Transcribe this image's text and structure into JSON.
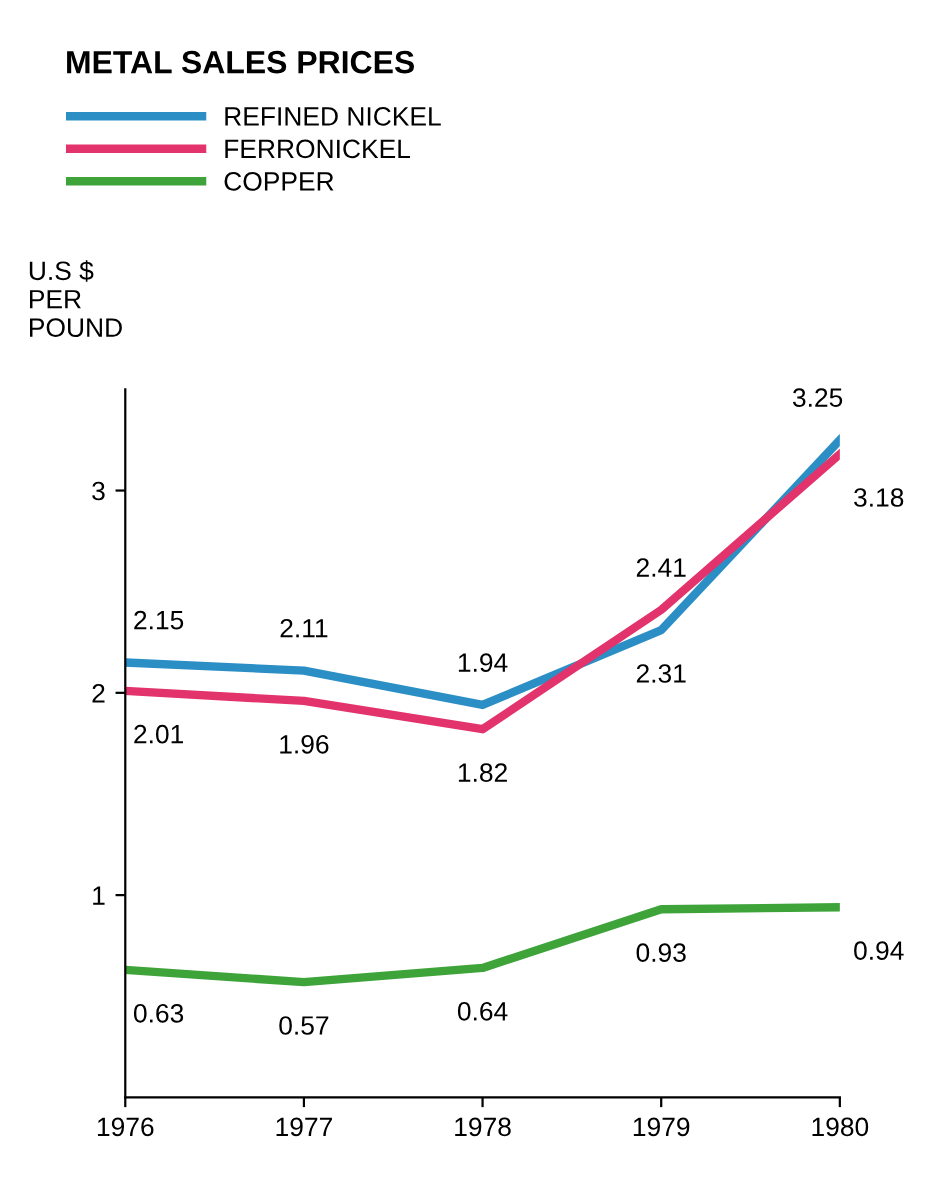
{
  "chart_data": {
    "type": "line",
    "title": "METAL SALES PRICES",
    "ylabel": "U.S $\nPER\nPOUND",
    "x": [
      1976,
      1977,
      1978,
      1979,
      1980
    ],
    "series": [
      {
        "name": "REFINED NICKEL",
        "color": "#2b8fc6",
        "values": [
          2.15,
          2.11,
          1.94,
          2.31,
          3.25
        ]
      },
      {
        "name": "FERRONICKEL",
        "color": "#e2336c",
        "values": [
          2.01,
          1.96,
          1.82,
          2.41,
          3.18
        ]
      },
      {
        "name": "COPPER",
        "color": "#3ea43a",
        "values": [
          0.63,
          0.57,
          0.64,
          0.93,
          0.94
        ]
      }
    ],
    "xlim": [
      1976,
      1980
    ],
    "xticks": [
      1976,
      1977,
      1978,
      1979,
      1980
    ],
    "ylim": [
      0,
      3.5
    ],
    "yticks": [
      1,
      2,
      3
    ],
    "data_labels": true,
    "grid": false,
    "legend": "top left",
    "marker": "none",
    "line_style": "solid"
  }
}
